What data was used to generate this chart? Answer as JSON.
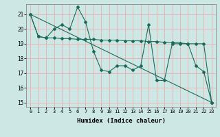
{
  "title": "",
  "xlabel": "Humidex (Indice chaleur)",
  "bg_color": "#cde8e4",
  "grid_color": "#e8b4b4",
  "line_color": "#1a6b5a",
  "xlim": [
    -0.5,
    23.5
  ],
  "ylim": [
    14.7,
    21.7
  ],
  "yticks": [
    15,
    16,
    17,
    18,
    19,
    20,
    21
  ],
  "xticks": [
    0,
    1,
    2,
    3,
    4,
    5,
    6,
    7,
    8,
    9,
    10,
    11,
    12,
    13,
    14,
    15,
    16,
    17,
    18,
    19,
    20,
    21,
    22,
    23
  ],
  "line1_x": [
    0,
    1,
    2,
    3,
    4,
    5,
    6,
    7,
    8,
    9,
    10,
    11,
    12,
    13,
    14,
    15,
    16,
    17,
    18,
    19,
    20,
    21,
    22,
    23
  ],
  "line1_y": [
    21.0,
    19.5,
    19.4,
    20.0,
    20.3,
    20.0,
    21.5,
    20.5,
    18.5,
    17.2,
    17.1,
    17.5,
    17.5,
    17.2,
    17.5,
    20.3,
    16.5,
    16.5,
    19.0,
    19.0,
    19.0,
    17.5,
    17.1,
    15.0
  ],
  "line2_x": [
    0,
    23
  ],
  "line2_y": [
    21.0,
    15.0
  ],
  "line3_x": [
    0,
    1,
    2,
    3,
    4,
    5,
    6,
    7,
    8,
    9,
    10,
    11,
    12,
    13,
    14,
    15,
    16,
    17,
    18,
    19,
    20,
    21,
    22,
    23
  ],
  "line3_y": [
    21.0,
    19.5,
    19.4,
    19.4,
    19.35,
    19.35,
    19.3,
    19.3,
    19.3,
    19.25,
    19.25,
    19.25,
    19.2,
    19.2,
    19.2,
    19.15,
    19.15,
    19.1,
    19.1,
    19.05,
    19.0,
    19.0,
    19.0,
    15.0
  ]
}
